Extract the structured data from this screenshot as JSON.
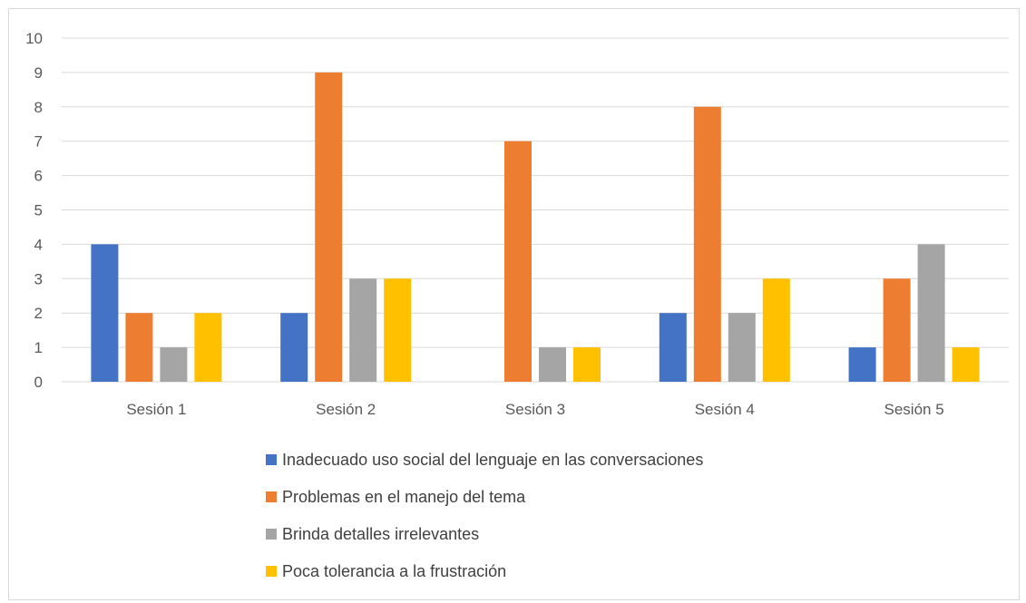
{
  "chart_data": {
    "type": "bar",
    "categories": [
      "Sesión 1",
      "Sesión 2",
      "Sesión 3",
      "Sesión 4",
      "Sesión 5"
    ],
    "series": [
      {
        "name": "Inadecuado uso social del lenguaje en las conversaciones",
        "color": "#4472C4",
        "values": [
          4,
          2,
          0,
          2,
          1
        ]
      },
      {
        "name": "Problemas en el manejo del tema",
        "color": "#ED7D31",
        "values": [
          2,
          9,
          7,
          8,
          3
        ]
      },
      {
        "name": "Brinda detalles irrelevantes",
        "color": "#A5A5A5",
        "values": [
          1,
          3,
          1,
          2,
          4
        ]
      },
      {
        "name": "Poca tolerancia a la frustración",
        "color": "#FFC000",
        "values": [
          2,
          3,
          1,
          3,
          1
        ]
      }
    ],
    "yticks": [
      "0",
      "1",
      "2",
      "3",
      "4",
      "5",
      "6",
      "7",
      "8",
      "9",
      "10"
    ],
    "ylim": [
      0,
      10
    ],
    "grid": true,
    "legend_position": "bottom"
  }
}
